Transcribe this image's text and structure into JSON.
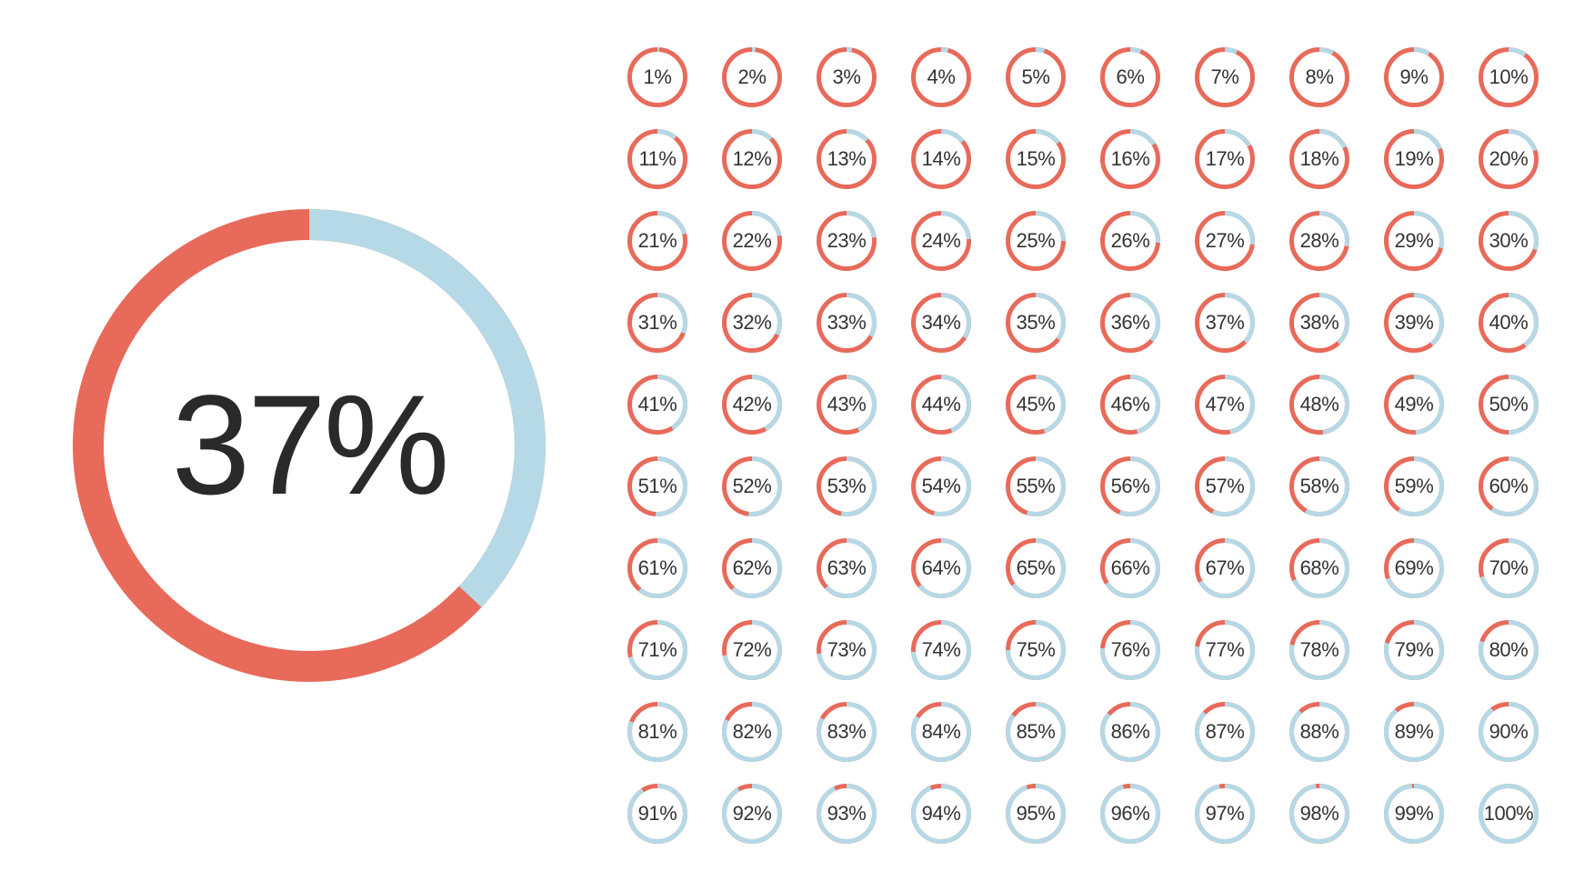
{
  "background_color": "#ffffff",
  "text_color": "#2a2a2a",
  "colors": {
    "remaining": "#e86a5a",
    "progress": "#b5d9e6"
  },
  "large_donut": {
    "value": 37,
    "label": "37%",
    "diameter": 520,
    "stroke_width": 34,
    "font_size": 156,
    "font_weight": 100,
    "start_angle_deg": -90
  },
  "small_donut_style": {
    "diameter": 66,
    "stroke_width": 5,
    "font_size": 22,
    "font_weight": 300,
    "start_angle_deg": -90
  },
  "grid": {
    "rows": 10,
    "cols": 10,
    "col_gap": 38,
    "row_gap": 24,
    "values": [
      1,
      2,
      3,
      4,
      5,
      6,
      7,
      8,
      9,
      10,
      11,
      12,
      13,
      14,
      15,
      16,
      17,
      18,
      19,
      20,
      21,
      22,
      23,
      24,
      25,
      26,
      27,
      28,
      29,
      30,
      31,
      32,
      33,
      34,
      35,
      36,
      37,
      38,
      39,
      40,
      41,
      42,
      43,
      44,
      45,
      46,
      47,
      48,
      49,
      50,
      51,
      52,
      53,
      54,
      55,
      56,
      57,
      58,
      59,
      60,
      61,
      62,
      63,
      64,
      65,
      66,
      67,
      68,
      69,
      70,
      71,
      72,
      73,
      74,
      75,
      76,
      77,
      78,
      79,
      80,
      81,
      82,
      83,
      84,
      85,
      86,
      87,
      88,
      89,
      90,
      91,
      92,
      93,
      94,
      95,
      96,
      97,
      98,
      99,
      100
    ]
  }
}
